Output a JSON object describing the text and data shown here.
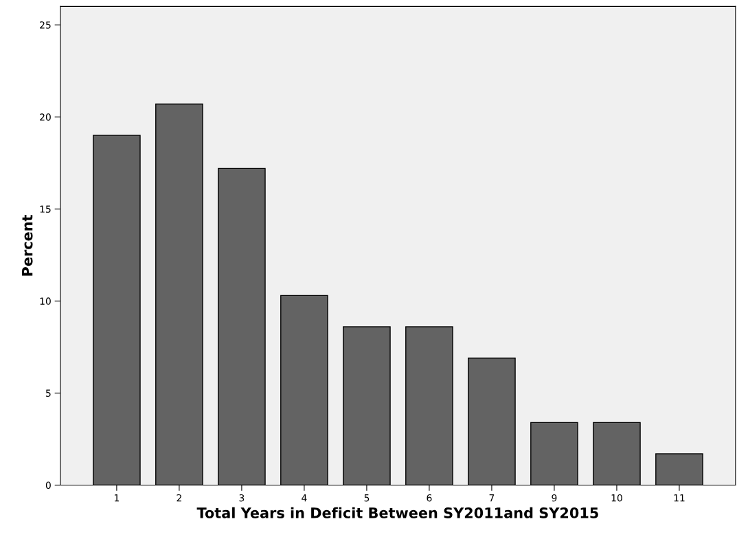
{
  "chart_data": {
    "type": "bar",
    "xlabel": "Total Years in Deficit Between SY2011and SY2015",
    "ylabel": "Percent",
    "categories": [
      "1",
      "2",
      "3",
      "4",
      "5",
      "6",
      "7",
      "9",
      "10",
      "11"
    ],
    "values": [
      19.0,
      20.7,
      17.2,
      10.3,
      8.6,
      8.6,
      6.9,
      3.4,
      3.4,
      1.7
    ],
    "color": "#636363",
    "ylim": [
      0,
      26
    ],
    "yticks": [
      0,
      5,
      10,
      15,
      20,
      25
    ],
    "grid": false,
    "legend": false
  }
}
